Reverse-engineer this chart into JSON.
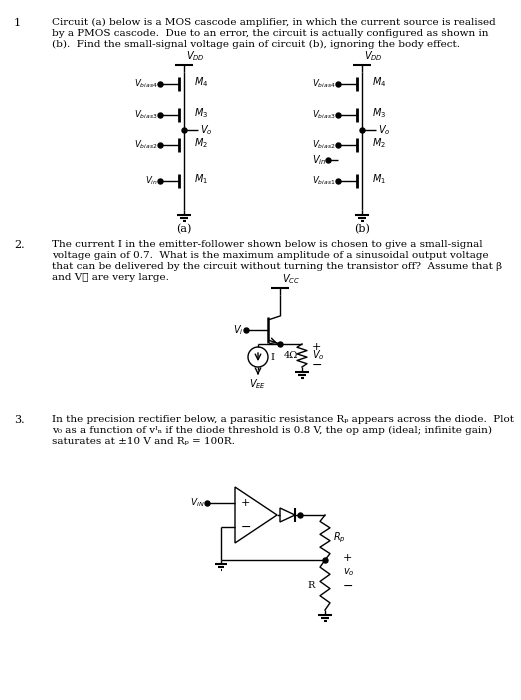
{
  "bg_color": "#ffffff",
  "text_color": "#000000",
  "line_color": "#000000",
  "fig_width": 5.21,
  "fig_height": 7.0,
  "dpi": 100,
  "p1_lines": [
    "Circuit (a) below is a MOS cascode amplifier, in which the current source is realised",
    "by a PMOS cascode.  Due to an error, the circuit is actually configured as shown in",
    "(b).  Find the small-signal voltage gain of circuit (b), ignoring the body effect."
  ],
  "p2_lines": [
    "The current I in the emitter-follower shown below is chosen to give a small-signal",
    "voltage gain of 0.7.  What is the maximum amplitude of a sinusoidal output voltage",
    "that can be delivered by the circuit without turning the transistor off?  Assume that β",
    "and V⁁ are very large."
  ],
  "p3_lines": [
    "In the precision rectifier below, a parasitic resistance Rₚ appears across the diode.  Plot",
    "v₀ as a function of vᴵₙ if the diode threshold is 0.8 V, the op amp (ideal; infinite gain)",
    "saturates at ±10 V and Rₚ = 100R."
  ]
}
